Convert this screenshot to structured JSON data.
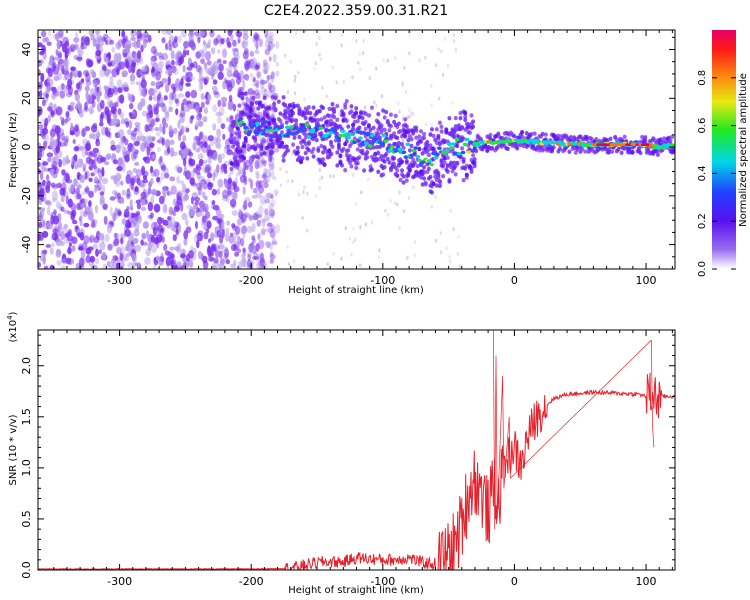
{
  "title": "C2E4.2022.359.00.31.R21",
  "chart_data": [
    {
      "type": "heatmap",
      "description_of_content": "spectrogram of normalized spectral amplitude vs height",
      "xlabel": "Height of straight line (km)",
      "ylabel": "Frequency (Hz)",
      "xlim": [
        -362,
        122
      ],
      "ylim": [
        -50,
        48
      ],
      "xticks": [
        -300,
        -200,
        -100,
        0,
        100
      ],
      "yticks": [
        -40,
        -20,
        0,
        20,
        40
      ],
      "colorbar": {
        "label": "Normalized spectral amplitude",
        "range": [
          0,
          1
        ],
        "ticks": [
          "0.0",
          "0.2",
          "0.4",
          "0.6",
          "0.8"
        ],
        "tick_values": [
          0.0,
          0.2,
          0.4,
          0.6,
          0.8
        ]
      },
      "ridge": {
        "x": [
          -210,
          -180,
          -150,
          -120,
          -100,
          -80,
          -65,
          -55,
          -45,
          -30,
          -20,
          -10,
          0,
          20,
          50,
          80,
          100,
          110,
          122
        ],
        "y": [
          8,
          7,
          6,
          4,
          2,
          -2,
          -5,
          -3,
          0,
          1,
          2,
          2,
          3,
          2,
          1,
          1,
          1,
          0,
          1
        ]
      },
      "noise_region": {
        "x_from": -362,
        "x_to": -190
      },
      "colors": [
        "#ffffff",
        "#b39ae8",
        "#7a2cf0",
        "#3050ff",
        "#00d8e0",
        "#20e830",
        "#f0e010",
        "#ff7010",
        "#e8004a"
      ]
    },
    {
      "type": "line",
      "xlabel": "Height of straight line (km)",
      "ylabel": "SNR (10 * v/v)",
      "y_multiplier": "(x10",
      "y_multiplier_exp": "4",
      "xlim": [
        -362,
        122
      ],
      "ylim": [
        0,
        2.35
      ],
      "xticks": [
        -300,
        -200,
        -100,
        0,
        100
      ],
      "yticks": [
        "0.0",
        "0.5",
        "1.0",
        "1.5",
        "2.0"
      ],
      "ytick_values": [
        0.0,
        0.5,
        1.0,
        1.5,
        2.0
      ],
      "series": [
        {
          "color": "#e8202a",
          "x": [
            -362,
            -300,
            -250,
            -200,
            -175,
            -165,
            -155,
            -145,
            -130,
            -120,
            -110,
            -100,
            -90,
            -80,
            -70,
            -60,
            -55,
            -50,
            -45,
            -40,
            -35,
            -30,
            -25,
            -20,
            -15,
            -12,
            -10,
            -5,
            0,
            5,
            10,
            15,
            20,
            25,
            30,
            40,
            60,
            80,
            95,
            100,
            105,
            108,
            112,
            122
          ],
          "y": [
            0.01,
            0.01,
            0.01,
            0.01,
            0.015,
            0.03,
            0.06,
            0.08,
            0.08,
            0.12,
            0.11,
            0.1,
            0.1,
            0.12,
            0.07,
            0.06,
            0.08,
            0.15,
            0.25,
            0.45,
            0.75,
            0.9,
            0.75,
            0.55,
            0.85,
            0.6,
            1.0,
            1.1,
            1.2,
            1.0,
            1.3,
            1.45,
            1.55,
            1.62,
            1.68,
            1.72,
            1.74,
            1.73,
            1.72,
            1.7,
            1.72,
            1.68,
            1.7,
            1.7
          ]
        }
      ]
    }
  ]
}
